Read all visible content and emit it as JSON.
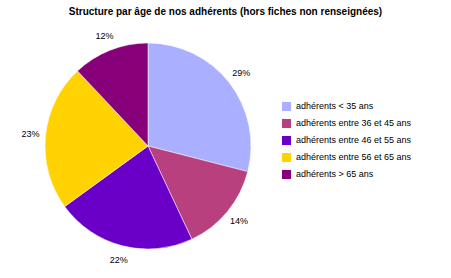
{
  "chart_data": {
    "type": "pie",
    "title": "Structure par âge de nos adhérents (hors fiches non renseignées)",
    "categories": [
      "adhérents < 35 ans",
      "adhérents entre 36 et 45 ans",
      "adhérents entre 46 et 55 ans",
      "adhérents entre 56 et 65 ans",
      "adhérents > 65 ans"
    ],
    "values": [
      29,
      14,
      22,
      23,
      12
    ],
    "value_labels": [
      "29%",
      "14%",
      "22%",
      "23%",
      "12%"
    ],
    "colors": [
      "#aab0ff",
      "#b8407e",
      "#6a00c8",
      "#ffd200",
      "#87007a"
    ],
    "data_labels": true,
    "legend": "right"
  }
}
